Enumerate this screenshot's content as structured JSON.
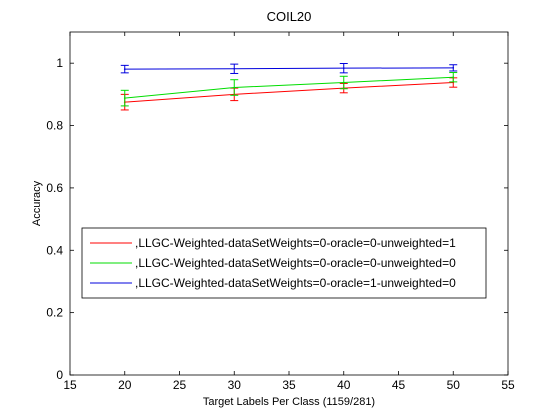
{
  "chart_data": {
    "type": "line",
    "title": "COIL20",
    "xlabel": "Target Labels Per Class (1159/281)",
    "ylabel": "Accuracy",
    "xlim": [
      15,
      55
    ],
    "ylim": [
      0,
      1.1
    ],
    "xticks": [
      15,
      20,
      25,
      30,
      35,
      40,
      45,
      50,
      55
    ],
    "yticks": [
      0,
      0.2,
      0.4,
      0.6,
      0.8,
      1
    ],
    "x": [
      20,
      30,
      40,
      50
    ],
    "grid": false,
    "legend_position": "lower-left",
    "series": [
      {
        "name": ",LLGC-Weighted-dataSetWeights=0-oracle=0-unweighted=1",
        "color": "#ff0000",
        "values": [
          0.875,
          0.9,
          0.92,
          0.938
        ],
        "errors": [
          0.025,
          0.02,
          0.015,
          0.015
        ]
      },
      {
        "name": ",LLGC-Weighted-dataSetWeights=0-oracle=0-unweighted=0",
        "color": "#00dd00",
        "values": [
          0.888,
          0.922,
          0.938,
          0.955
        ],
        "errors": [
          0.025,
          0.025,
          0.02,
          0.015
        ]
      },
      {
        "name": ",LLGC-Weighted-dataSetWeights=0-oracle=1-unweighted=0",
        "color": "#0000dd",
        "values": [
          0.981,
          0.982,
          0.984,
          0.985
        ],
        "errors": [
          0.012,
          0.015,
          0.015,
          0.01
        ]
      }
    ]
  }
}
